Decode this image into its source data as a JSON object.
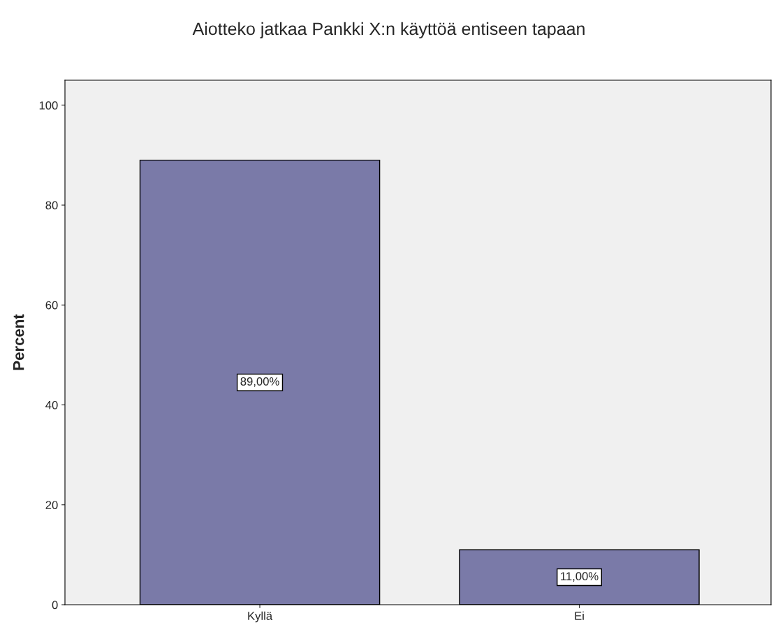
{
  "chart_data": {
    "type": "bar",
    "title": "Aiotteko jatkaa Pankki X:n käyttöä entiseen tapaan",
    "ylabel": "Percent",
    "categories": [
      "Kyllä",
      "Ei"
    ],
    "values": [
      89,
      11
    ],
    "value_labels": [
      "89,00%",
      "11,00%"
    ],
    "color": "#7a7aa8",
    "ylim": [
      0,
      105
    ],
    "yticks": [
      0,
      20,
      40,
      60,
      80,
      100
    ],
    "grid": false,
    "legend": false
  }
}
